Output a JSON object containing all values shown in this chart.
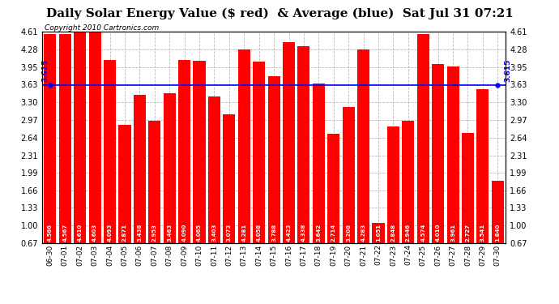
{
  "title": "Daily Solar Energy Value ($ red)  & Average (blue)  Sat Jul 31 07:21",
  "copyright": "Copyright 2010 Cartronics.com",
  "average": 3.615,
  "average_label": "3.615",
  "bar_color": "#FF0000",
  "avg_line_color": "#0000FF",
  "background_color": "#FFFFFF",
  "plot_bg_color": "#FFFFFF",
  "grid_color": "#BBBBBB",
  "categories": [
    "06-30",
    "07-01",
    "07-02",
    "07-03",
    "07-04",
    "07-05",
    "07-06",
    "07-07",
    "07-08",
    "07-09",
    "07-10",
    "07-11",
    "07-12",
    "07-13",
    "07-14",
    "07-15",
    "07-16",
    "07-17",
    "07-18",
    "07-19",
    "07-20",
    "07-21",
    "07-22",
    "07-23",
    "07-24",
    "07-25",
    "07-26",
    "07-27",
    "07-28",
    "07-29",
    "07-30"
  ],
  "values": [
    4.566,
    4.567,
    4.61,
    4.603,
    4.093,
    2.871,
    3.438,
    2.953,
    3.463,
    4.09,
    4.065,
    3.403,
    3.073,
    4.281,
    4.058,
    3.788,
    4.423,
    4.338,
    3.642,
    2.714,
    3.208,
    4.283,
    1.051,
    2.848,
    2.946,
    4.574,
    4.01,
    3.961,
    2.727,
    3.541,
    1.84
  ],
  "ylim_min": 0.67,
  "ylim_max": 4.61,
  "yticks": [
    0.67,
    1.0,
    1.33,
    1.66,
    1.99,
    2.31,
    2.64,
    2.97,
    3.3,
    3.63,
    3.95,
    4.28,
    4.61
  ],
  "value_fontsize": 5.0,
  "title_fontsize": 11,
  "copyright_fontsize": 6.5,
  "tick_fontsize": 7.0,
  "bar_width": 0.82
}
